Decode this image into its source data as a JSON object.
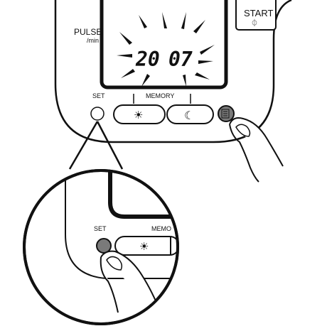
{
  "device": {
    "pulse_label": "PULSE",
    "pulse_unit": "/min",
    "start_label": "START",
    "start_symbol": "⏀",
    "display_year": "20",
    "display_month": "07",
    "set_label": "SET",
    "memory_label": "MEMORY",
    "morning_symbol": "☀",
    "evening_symbol": "☾"
  },
  "inset": {
    "set_label": "SET",
    "memory_label": "MEMO",
    "morning_symbol": "☀"
  },
  "colors": {
    "line": "#111111",
    "pressed_button": "#7a7a7a",
    "background": "#ffffff"
  }
}
